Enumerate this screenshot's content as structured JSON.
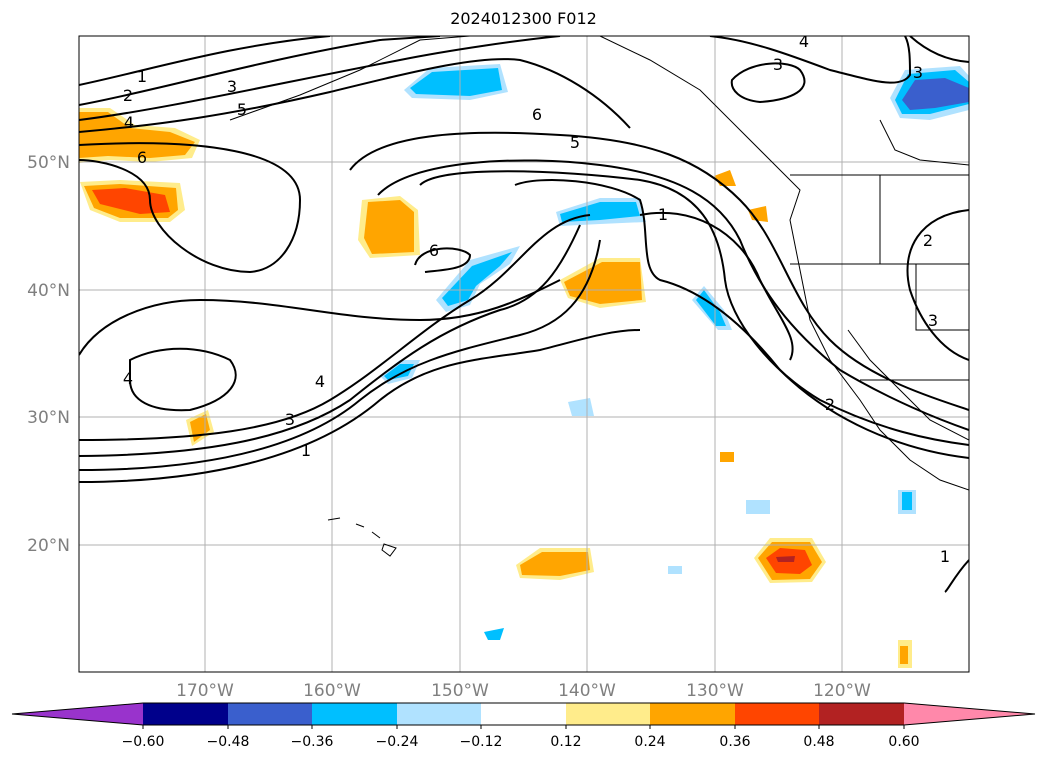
{
  "title": "2024012300 F012",
  "map": {
    "lat_labels": [
      "50°N",
      "40°N",
      "30°N",
      "20°N"
    ],
    "lon_labels": [
      "170°W",
      "160°W",
      "150°W",
      "140°W",
      "130°W",
      "120°W"
    ],
    "extent": {
      "lon_min": -180,
      "lon_max": -110,
      "lat_min": 10,
      "lat_max": 60
    },
    "contour_labels": [
      "1",
      "2",
      "3",
      "4",
      "5",
      "6",
      "3",
      "4",
      "5",
      "6",
      "1",
      "2",
      "3",
      "4",
      "4",
      "3",
      "1",
      "6",
      "2",
      "3",
      "1"
    ]
  },
  "colorbar": {
    "ticks": [
      "−0.60",
      "−0.48",
      "−0.36",
      "−0.24",
      "−0.12",
      "0.12",
      "0.24",
      "0.36",
      "0.48",
      "0.60"
    ],
    "colors": [
      "#9933cc",
      "#00008b",
      "#3a5fcd",
      "#00bfff",
      "#b0e2ff",
      "#ffffff",
      "#ffec8b",
      "#ffa500",
      "#ff4500",
      "#b22222",
      "#ff88aa"
    ]
  }
}
